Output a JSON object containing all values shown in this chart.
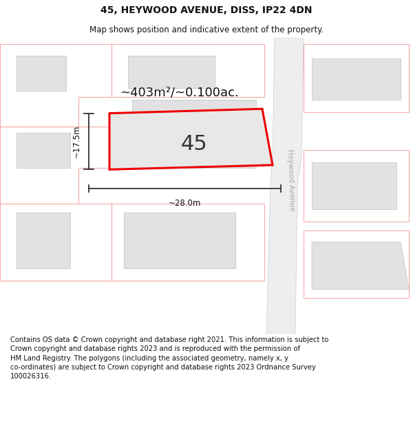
{
  "title": "45, HEYWOOD AVENUE, DISS, IP22 4DN",
  "subtitle": "Map shows position and indicative extent of the property.",
  "footer": "Contains OS data © Crown copyright and database right 2021. This information is subject to\nCrown copyright and database rights 2023 and is reproduced with the permission of\nHM Land Registry. The polygons (including the associated geometry, namely x, y\nco-ordinates) are subject to Crown copyright and database rights 2023 Ordnance Survey\n100026316.",
  "background_color": "#ffffff",
  "map_bg": "#f7f7f7",
  "building_fill": "#e2e2e2",
  "building_edge": "#c8c8c8",
  "highlight_fill": "#e8e8e8",
  "highlight_stroke": "#ee0000",
  "pink_stroke": "#f5aaaa",
  "road_fill": "#eeeeee",
  "road_stroke": "#cccccc",
  "street_label_color": "#aaaaaa",
  "street_label": "Heywood Avenue",
  "area_label": "~403m²/~0.100ac.",
  "number_label": "45",
  "dim_width": "~28.0m",
  "dim_height": "~17.5m",
  "title_fontsize": 10,
  "subtitle_fontsize": 8.5,
  "footer_fontsize": 7.2,
  "area_fontsize": 13,
  "number_fontsize": 22,
  "dim_fontsize": 8.5
}
